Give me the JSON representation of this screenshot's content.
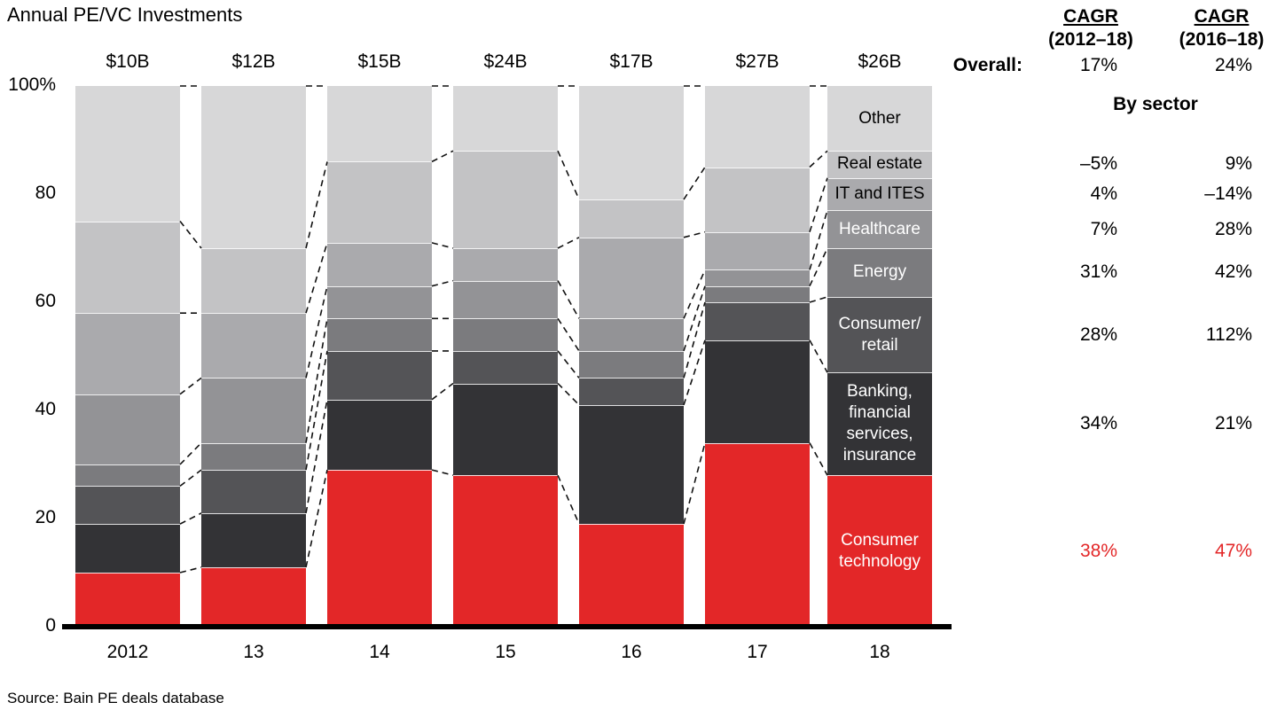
{
  "title": "Annual PE/VC Investments",
  "source": "Source: Bain PE deals database",
  "chart_data": {
    "type": "bar",
    "stacked": true,
    "unit": "percent of annual PE/VC investments",
    "title": "Annual PE/VC Investments",
    "categories": [
      "2012",
      "13",
      "14",
      "15",
      "16",
      "17",
      "18"
    ],
    "totals": [
      "$10B",
      "$12B",
      "$15B",
      "$24B",
      "$17B",
      "$27B",
      "$26B"
    ],
    "ylim": [
      0,
      100
    ],
    "y_tick_labels": [
      "100%",
      "80",
      "60",
      "40",
      "20",
      "0"
    ],
    "grid": false,
    "legend": "labels shown inside last bar",
    "series": [
      {
        "name": "Consumer technology",
        "label_lines": [
          "Consumer",
          "technology"
        ],
        "color": "#e32728",
        "text_color": "#ffffff",
        "values": [
          10,
          11,
          29,
          28,
          19,
          34,
          28
        ]
      },
      {
        "name": "Banking, financial services, insurance",
        "label_lines": [
          "Banking,",
          "financial",
          "services,",
          "insurance"
        ],
        "color": "#333336",
        "text_color": "#ffffff",
        "values": [
          9,
          10,
          13,
          17,
          22,
          19,
          19
        ]
      },
      {
        "name": "Consumer/retail",
        "label_lines": [
          "Consumer/",
          "retail"
        ],
        "color": "#545457",
        "text_color": "#ffffff",
        "values": [
          7,
          8,
          9,
          6,
          5,
          7,
          14
        ]
      },
      {
        "name": "Energy",
        "label_lines": [
          "Energy"
        ],
        "color": "#7b7b7e",
        "text_color": "#ffffff",
        "values": [
          4,
          5,
          6,
          6,
          5,
          3,
          9
        ]
      },
      {
        "name": "Healthcare",
        "label_lines": [
          "Healthcare"
        ],
        "color": "#939396",
        "text_color": "#ffffff",
        "values": [
          13,
          12,
          6,
          7,
          6,
          3,
          7
        ]
      },
      {
        "name": "IT and ITES",
        "label_lines": [
          "IT and ITES"
        ],
        "color": "#aaaaad",
        "text_color": "#000000",
        "values": [
          15,
          12,
          8,
          6,
          15,
          7,
          6
        ]
      },
      {
        "name": "Real estate",
        "label_lines": [
          "Real estate"
        ],
        "color": "#c3c3c5",
        "text_color": "#000000",
        "values": [
          17,
          12,
          15,
          18,
          7,
          12,
          5
        ]
      },
      {
        "name": "Other",
        "label_lines": [
          "Other"
        ],
        "color": "#d7d7d8",
        "text_color": "#000000",
        "values": [
          25,
          30,
          14,
          12,
          21,
          15,
          12
        ]
      }
    ]
  },
  "cagr": {
    "col1": {
      "line1": "CAGR",
      "line2": "(2012–18)"
    },
    "col2": {
      "line1": "CAGR",
      "line2": "(2016–18)"
    },
    "overall_label": "Overall:",
    "overall_col1": "17%",
    "overall_col2": "24%",
    "by_sector": "By sector",
    "highlight_color": "#e32728",
    "rows": [
      {
        "sector": "Real estate",
        "c1": "–5%",
        "c2": "9%",
        "highlight": false
      },
      {
        "sector": "IT and ITES",
        "c1": "4%",
        "c2": "–14%",
        "highlight": false
      },
      {
        "sector": "Healthcare",
        "c1": "7%",
        "c2": "28%",
        "highlight": false
      },
      {
        "sector": "Energy",
        "c1": "31%",
        "c2": "42%",
        "highlight": false
      },
      {
        "sector": "Consumer/retail",
        "c1": "28%",
        "c2": "112%",
        "highlight": false
      },
      {
        "sector": "Banking, financial services, insurance",
        "c1": "34%",
        "c2": "21%",
        "highlight": false
      },
      {
        "sector": "Consumer technology",
        "c1": "38%",
        "c2": "47%",
        "highlight": true
      }
    ]
  }
}
